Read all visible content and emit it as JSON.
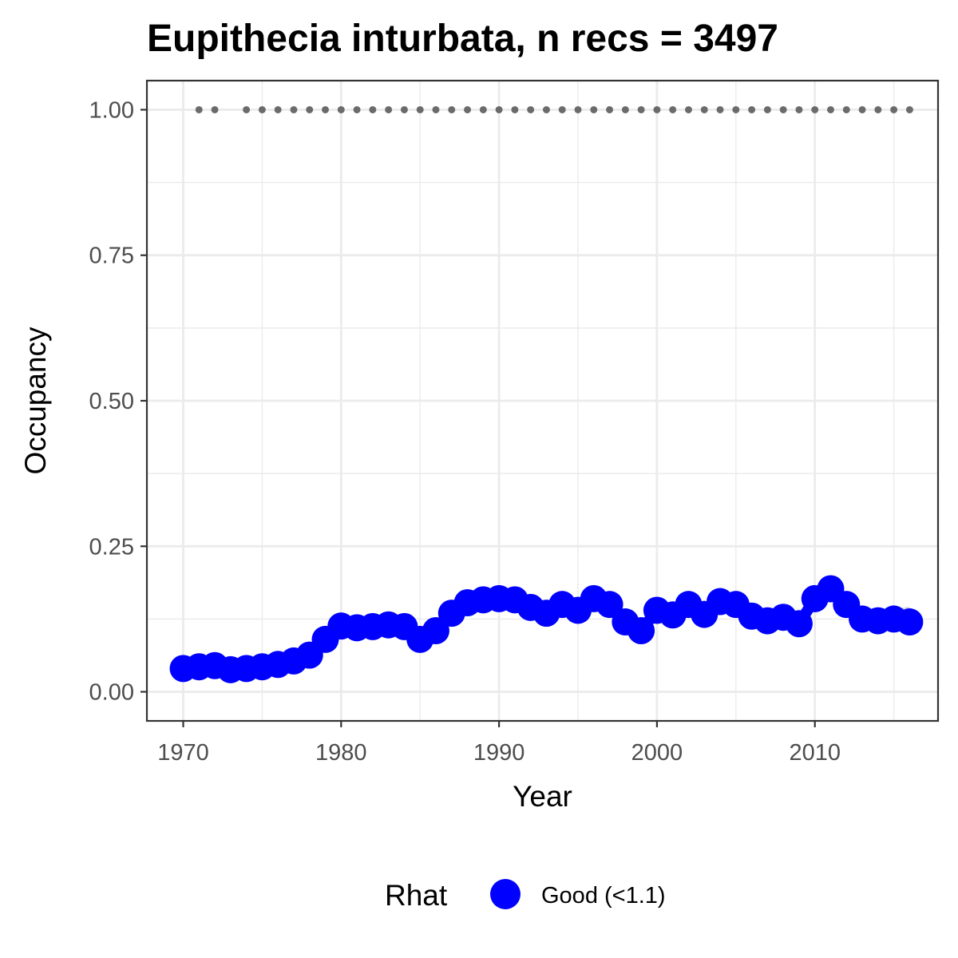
{
  "chart_data": {
    "type": "line",
    "title": "Eupithecia inturbata, n recs = 3497",
    "xlabel": "Year",
    "ylabel": "Occupancy",
    "xlim": [
      1967.7,
      2017.8
    ],
    "ylim": [
      -0.05,
      1.05
    ],
    "x_ticks": [
      1970,
      1980,
      1990,
      2000,
      2010
    ],
    "x_tick_labels": [
      "1970",
      "1980",
      "1990",
      "2000",
      "2010"
    ],
    "y_ticks": [
      0,
      0.25,
      0.5,
      0.75,
      1
    ],
    "y_tick_labels": [
      "0.00",
      "0.25",
      "0.50",
      "0.75",
      "1.00"
    ],
    "grid": true,
    "legend": {
      "title": "Rhat",
      "position": "bottom",
      "items": [
        {
          "label": "Good (<1.1)",
          "color": "#0000ff"
        }
      ]
    },
    "colors": {
      "series": "#0000ff",
      "ribbon": "#c8c8c8",
      "record_dots": "#6b6b6b",
      "grid": "#ebebeb",
      "panel_border": "#333333"
    },
    "x": [
      1970,
      1971,
      1972,
      1973,
      1974,
      1975,
      1976,
      1977,
      1978,
      1979,
      1980,
      1981,
      1982,
      1983,
      1984,
      1985,
      1986,
      1987,
      1988,
      1989,
      1990,
      1991,
      1992,
      1993,
      1994,
      1995,
      1996,
      1997,
      1998,
      1999,
      2000,
      2001,
      2002,
      2003,
      2004,
      2005,
      2006,
      2007,
      2008,
      2009,
      2010,
      2011,
      2012,
      2013,
      2014,
      2015,
      2016
    ],
    "series": [
      {
        "values": [
          0.04,
          0.043,
          0.045,
          0.038,
          0.04,
          0.043,
          0.047,
          0.053,
          0.063,
          0.09,
          0.113,
          0.11,
          0.112,
          0.115,
          0.112,
          0.09,
          0.105,
          0.135,
          0.153,
          0.158,
          0.16,
          0.158,
          0.145,
          0.135,
          0.15,
          0.14,
          0.16,
          0.15,
          0.12,
          0.105,
          0.14,
          0.132,
          0.15,
          0.133,
          0.155,
          0.15,
          0.13,
          0.122,
          0.128,
          0.117,
          0.16,
          0.177,
          0.15,
          0.125,
          0.122,
          0.125,
          0.12
        ]
      }
    ],
    "ribbon_lower": [
      0.035,
      0.038,
      0.04,
      0.033,
      0.035,
      0.038,
      0.041,
      0.047,
      0.056,
      0.082,
      0.102,
      0.099,
      0.101,
      0.103,
      0.101,
      0.081,
      0.095,
      0.123,
      0.14,
      0.145,
      0.146,
      0.145,
      0.133,
      0.124,
      0.138,
      0.128,
      0.147,
      0.137,
      0.109,
      0.095,
      0.128,
      0.12,
      0.137,
      0.121,
      0.142,
      0.137,
      0.118,
      0.11,
      0.116,
      0.105,
      0.146,
      0.162,
      0.136,
      0.112,
      0.108,
      0.108,
      0.096
    ],
    "ribbon_upper": [
      0.045,
      0.048,
      0.05,
      0.043,
      0.045,
      0.048,
      0.053,
      0.059,
      0.07,
      0.098,
      0.124,
      0.121,
      0.123,
      0.127,
      0.123,
      0.099,
      0.115,
      0.147,
      0.166,
      0.171,
      0.174,
      0.171,
      0.157,
      0.146,
      0.162,
      0.152,
      0.173,
      0.163,
      0.131,
      0.115,
      0.152,
      0.144,
      0.163,
      0.145,
      0.168,
      0.163,
      0.142,
      0.134,
      0.14,
      0.129,
      0.174,
      0.192,
      0.164,
      0.138,
      0.136,
      0.142,
      0.146
    ],
    "record_years": [
      1971,
      1972,
      1974,
      1975,
      1976,
      1977,
      1978,
      1979,
      1980,
      1981,
      1982,
      1983,
      1984,
      1985,
      1986,
      1987,
      1988,
      1989,
      1990,
      1991,
      1992,
      1993,
      1994,
      1995,
      1996,
      1997,
      1998,
      1999,
      2000,
      2001,
      2002,
      2003,
      2004,
      2005,
      2006,
      2007,
      2008,
      2009,
      2010,
      2011,
      2012,
      2013,
      2014,
      2015,
      2016
    ],
    "record_value": 1.0
  }
}
